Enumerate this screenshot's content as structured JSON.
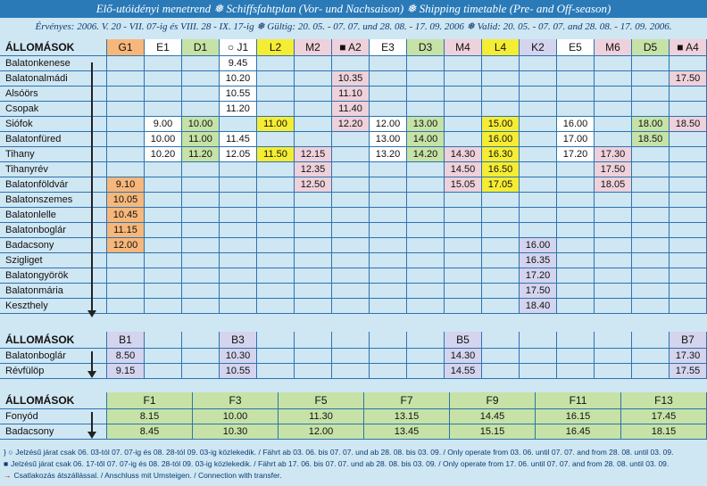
{
  "title": "Elő-utóidényi menetrend ❅ Schiffsfahtplan (Vor- und Nachsaison) ❅ Shipping timetable (Pre- and Off-season)",
  "validity": "Érvényes: 2006. V. 20 - VII. 07-ig és VIII. 28 - IX. 17-ig ❅ Gültig: 20. 05. - 07. 07. und 28. 08. - 17. 09. 2006 ❅ Valid: 20. 05. - 07. 07. and 28. 08. - 17. 09. 2006.",
  "colors": {
    "orange": "#f7b77a",
    "green": "#c6e2a6",
    "yellow": "#f5ec34",
    "pink": "#eed1da",
    "lavender": "#d4d4ee",
    "white": "#ffffff",
    "empty": "#cfe6f3",
    "header_bg": "#cfe6f3"
  },
  "table1": {
    "station_header": "ÁLLOMÁSOK",
    "columns": [
      {
        "label": "G1",
        "color": "orange"
      },
      {
        "label": "E1",
        "color": "white"
      },
      {
        "label": "D1",
        "color": "green"
      },
      {
        "label": "○ J1",
        "color": "white"
      },
      {
        "label": "L2",
        "color": "yellow"
      },
      {
        "label": "M2",
        "color": "pink"
      },
      {
        "label": "■ A2",
        "color": "pink"
      },
      {
        "label": "E3",
        "color": "white"
      },
      {
        "label": "D3",
        "color": "green"
      },
      {
        "label": "M4",
        "color": "pink"
      },
      {
        "label": "L4",
        "color": "yellow"
      },
      {
        "label": "K2",
        "color": "lavender"
      },
      {
        "label": "E5",
        "color": "white"
      },
      {
        "label": "M6",
        "color": "pink"
      },
      {
        "label": "D5",
        "color": "green"
      },
      {
        "label": "■ A4",
        "color": "pink"
      }
    ],
    "rows": [
      {
        "station": "Balatonkenese",
        "times": [
          "",
          "",
          "",
          "9.45",
          "",
          "",
          "",
          "",
          "",
          "",
          "",
          "",
          "",
          "",
          "",
          ""
        ]
      },
      {
        "station": "Balatonalmádi",
        "times": [
          "",
          "",
          "",
          "10.20",
          "",
          "",
          "10.35",
          "",
          "",
          "",
          "",
          "",
          "",
          "",
          "",
          "17.50"
        ]
      },
      {
        "station": "Alsóörs",
        "times": [
          "",
          "",
          "",
          "10.55",
          "",
          "",
          "11.10",
          "",
          "",
          "",
          "",
          "",
          "",
          "",
          "",
          ""
        ]
      },
      {
        "station": "Csopak",
        "times": [
          "",
          "",
          "",
          "11.20",
          "",
          "",
          "11.40",
          "",
          "",
          "",
          "",
          "",
          "",
          "",
          "",
          ""
        ]
      },
      {
        "station": "Siófok",
        "times": [
          "",
          "9.00",
          "10.00",
          "",
          "11.00",
          "",
          "12.20",
          "12.00",
          "13.00",
          "",
          "15.00",
          "",
          "16.00",
          "",
          "18.00",
          "18.50"
        ]
      },
      {
        "station": "Balatonfüred",
        "times": [
          "",
          "10.00",
          "11.00",
          "11.45",
          "",
          "",
          "",
          "13.00",
          "14.00",
          "",
          "16.00",
          "",
          "17.00",
          "",
          "18.50",
          ""
        ]
      },
      {
        "station": "Tihany",
        "times": [
          "",
          "10.20",
          "11.20",
          "12.05",
          "11.50",
          "12.15",
          "",
          "13.20",
          "14.20",
          "14.30",
          "16.30",
          "",
          "17.20",
          "17.30",
          "",
          ""
        ]
      },
      {
        "station": "Tihanyrév",
        "times": [
          "",
          "",
          "",
          "",
          "",
          "12.35",
          "",
          "",
          "",
          "14.50",
          "16.50",
          "",
          "",
          "17.50",
          "",
          ""
        ]
      },
      {
        "station": "Balatonföldvár",
        "times": [
          "9.10",
          "",
          "",
          "",
          "",
          "12.50",
          "",
          "",
          "",
          "15.05",
          "17.05",
          "",
          "",
          "18.05",
          "",
          ""
        ]
      },
      {
        "station": "Balatonszemes",
        "times": [
          "10.05",
          "",
          "",
          "",
          "",
          "",
          "",
          "",
          "",
          "",
          "",
          "",
          "",
          "",
          "",
          ""
        ]
      },
      {
        "station": "Balatonlelle",
        "times": [
          "10.45",
          "",
          "",
          "",
          "",
          "",
          "",
          "",
          "",
          "",
          "",
          "",
          "",
          "",
          "",
          ""
        ]
      },
      {
        "station": "Balatonboglár",
        "times": [
          "11.15",
          "",
          "",
          "",
          "",
          "",
          "",
          "",
          "",
          "",
          "",
          "",
          "",
          "",
          "",
          ""
        ]
      },
      {
        "station": "Badacsony",
        "times": [
          "12.00",
          "",
          "",
          "",
          "",
          "",
          "",
          "",
          "",
          "",
          "",
          "16.00",
          "",
          "",
          "",
          ""
        ]
      },
      {
        "station": "Szigliget",
        "times": [
          "",
          "",
          "",
          "",
          "",
          "",
          "",
          "",
          "",
          "",
          "",
          "16.35",
          "",
          "",
          "",
          ""
        ]
      },
      {
        "station": "Balatongyörök",
        "times": [
          "",
          "",
          "",
          "",
          "",
          "",
          "",
          "",
          "",
          "",
          "",
          "17.20",
          "",
          "",
          "",
          ""
        ]
      },
      {
        "station": "Balatonmária",
        "times": [
          "",
          "",
          "",
          "",
          "",
          "",
          "",
          "",
          "",
          "",
          "",
          "17.50",
          "",
          "",
          "",
          ""
        ]
      },
      {
        "station": "Keszthely",
        "times": [
          "",
          "",
          "",
          "",
          "",
          "",
          "",
          "",
          "",
          "",
          "",
          "18.40",
          "",
          "",
          "",
          ""
        ]
      }
    ]
  },
  "table2": {
    "station_header": "ÁLLOMÁSOK",
    "columns": [
      {
        "label": "B1",
        "color": "lavender"
      },
      {
        "label": "",
        "color": "empty"
      },
      {
        "label": "",
        "color": "empty"
      },
      {
        "label": "B3",
        "color": "lavender"
      },
      {
        "label": "",
        "color": "empty"
      },
      {
        "label": "",
        "color": "empty"
      },
      {
        "label": "",
        "color": "empty"
      },
      {
        "label": "",
        "color": "empty"
      },
      {
        "label": "",
        "color": "empty"
      },
      {
        "label": "B5",
        "color": "lavender"
      },
      {
        "label": "",
        "color": "empty"
      },
      {
        "label": "",
        "color": "empty"
      },
      {
        "label": "",
        "color": "empty"
      },
      {
        "label": "",
        "color": "empty"
      },
      {
        "label": "",
        "color": "empty"
      },
      {
        "label": "B7",
        "color": "lavender"
      }
    ],
    "rows": [
      {
        "station": "Balatonboglár",
        "times": [
          "8.50",
          "",
          "",
          "10.30",
          "",
          "",
          "",
          "",
          "",
          "14.30",
          "",
          "",
          "",
          "",
          "",
          "17.30"
        ]
      },
      {
        "station": "Révfülöp",
        "times": [
          "9.15",
          "",
          "",
          "10.55",
          "",
          "",
          "",
          "",
          "",
          "14.55",
          "",
          "",
          "",
          "",
          "",
          "17.55"
        ]
      }
    ]
  },
  "table3": {
    "station_header": "ÁLLOMÁSOK",
    "columns": [
      {
        "label": "F1",
        "color": "green"
      },
      {
        "label": "F3",
        "color": "green"
      },
      {
        "label": "F5",
        "color": "green"
      },
      {
        "label": "F7",
        "color": "green"
      },
      {
        "label": "F9",
        "color": "green"
      },
      {
        "label": "F11",
        "color": "green"
      },
      {
        "label": "F13",
        "color": "green"
      }
    ],
    "rows": [
      {
        "station": "Fonyód",
        "times": [
          "8.15",
          "10.00",
          "11.30",
          "13.15",
          "14.45",
          "16.15",
          "17.45"
        ]
      },
      {
        "station": "Badacsony",
        "times": [
          "8.45",
          "10.30",
          "12.00",
          "13.45",
          "15.15",
          "16.45",
          "18.15"
        ]
      }
    ]
  },
  "notes": [
    {
      "symbol": "} ○",
      "text": "Jelzésű járat csak 06. 03-tól 07. 07-ig és 08. 28-tól 09. 03-ig közlekedik. / Fährt ab 03. 06. bis 07. 07. und ab 28. 08. bis 03. 09. / Only operate from 03. 06. until 07. 07. and from 28. 08. until 03. 09."
    },
    {
      "symbol": "■",
      "text": "Jelzésű járat csak 06. 17-től 07. 07-ig és 08. 28-tól 09. 03-ig közlekedik. / Fährt ab 17. 06. bis 07. 07. und ab 28. 08. bis 03. 09. / Only operate from 17. 06. until 07. 07. and from 28. 08. until 03. 09."
    },
    {
      "symbol": "→",
      "text": "Csatlakozás átszállással. / Anschluss mit Umsteigen. / Connection with transfer."
    }
  ]
}
